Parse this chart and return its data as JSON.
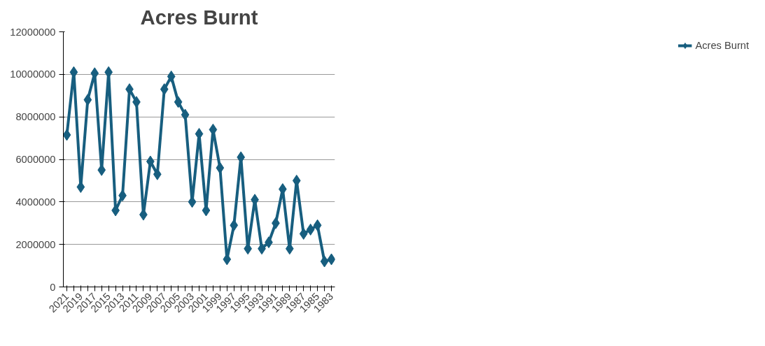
{
  "chart_data": {
    "type": "line",
    "title": "Acres Burnt",
    "categories": [
      "2021",
      null,
      "2019",
      null,
      "2017",
      null,
      "2015",
      null,
      "2013",
      null,
      "2011",
      null,
      "2009",
      null,
      "2007",
      null,
      "2005",
      null,
      "2003",
      null,
      "2001",
      null,
      "1999",
      null,
      "1997",
      null,
      "1995",
      null,
      "1993",
      null,
      "1991",
      null,
      "1989",
      null,
      "1987",
      null,
      "1985",
      null,
      "1983"
    ],
    "series": [
      {
        "name": "Acres Burnt",
        "color": "#175e7f",
        "values": [
          7150000,
          10100000,
          4700000,
          8800000,
          10050000,
          5500000,
          10100000,
          3600000,
          4300000,
          9300000,
          8700000,
          3400000,
          5900000,
          5300000,
          9300000,
          9900000,
          8700000,
          8100000,
          4000000,
          7200000,
          3600000,
          7400000,
          5600000,
          1300000,
          2900000,
          6100000,
          1800000,
          4100000,
          1800000,
          2100000,
          3000000,
          4600000,
          1800000,
          5000000,
          2500000,
          2700000,
          2900000,
          1200000,
          1300000
        ]
      }
    ],
    "ylim": [
      0,
      12000000
    ],
    "yticks": [
      0,
      2000000,
      4000000,
      6000000,
      8000000,
      10000000,
      12000000
    ],
    "grid": "y",
    "legend": "right",
    "marker": "diamond",
    "line_style": "solid"
  }
}
